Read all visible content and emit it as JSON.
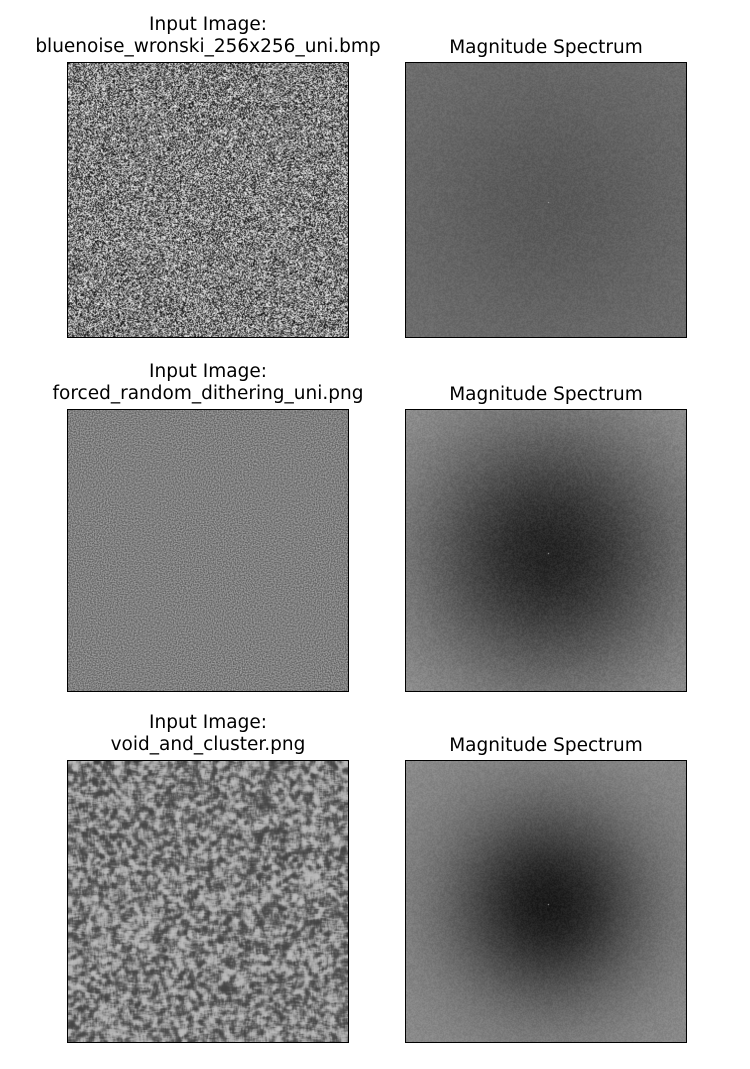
{
  "figure": {
    "rows": [
      {
        "input": {
          "title_line1": "Input Image:",
          "title_line2": "bluenoise_wronski_256x256_uni.bmp",
          "texture": "white-noise",
          "texture_contrast": 0.95
        },
        "spectrum": {
          "title": "Magnitude Spectrum",
          "base_gray": 112,
          "center_dark": 0.2,
          "dark_radius": 0.35,
          "noise": 10
        }
      },
      {
        "input": {
          "title_line1": "Input Image:",
          "title_line2": "forced_random_dithering_uni.png",
          "texture": "fine-blue-noise",
          "texture_contrast": 0.35
        },
        "spectrum": {
          "title": "Magnitude Spectrum",
          "base_gray": 152,
          "center_dark": 0.75,
          "dark_radius": 0.33,
          "noise": 12
        }
      },
      {
        "input": {
          "title_line1": "Input Image:",
          "title_line2": "void_and_cluster.png",
          "texture": "worm-blue-noise",
          "texture_contrast": 0.55
        },
        "spectrum": {
          "title": "Magnitude Spectrum",
          "base_gray": 140,
          "center_dark": 0.8,
          "dark_radius": 0.25,
          "noise": 10
        }
      }
    ]
  }
}
